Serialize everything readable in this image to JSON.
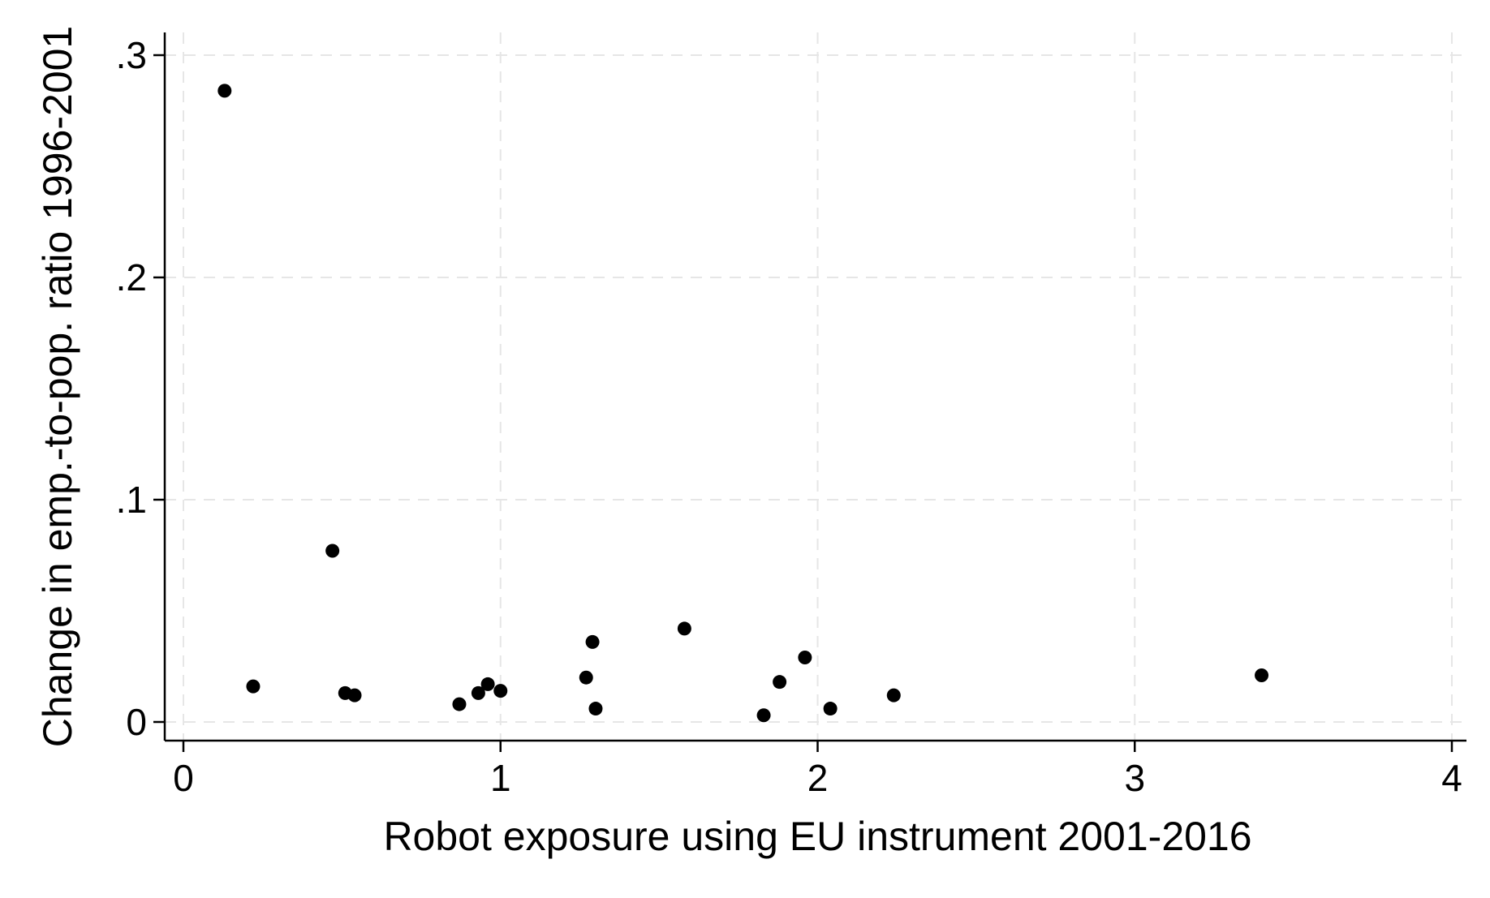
{
  "chart_data": {
    "type": "scatter",
    "xlabel": "Robot exposure using EU instrument 2001-2016",
    "ylabel": "Change in emp.-to-pop. ratio 1996-2001",
    "xlim": [
      0,
      4
    ],
    "ylim": [
      0,
      0.3
    ],
    "xticks": [
      0,
      1,
      2,
      3,
      4
    ],
    "xtick_labels": [
      "0",
      "1",
      "2",
      "3",
      "4"
    ],
    "yticks": [
      0,
      0.1,
      0.2,
      0.3
    ],
    "ytick_labels": [
      "0",
      ".1",
      ".2",
      ".3"
    ],
    "grid": true,
    "points": [
      {
        "x": 0.13,
        "y": 0.284
      },
      {
        "x": 0.22,
        "y": 0.016
      },
      {
        "x": 0.47,
        "y": 0.077
      },
      {
        "x": 0.51,
        "y": 0.013
      },
      {
        "x": 0.54,
        "y": 0.012
      },
      {
        "x": 0.87,
        "y": 0.008
      },
      {
        "x": 0.93,
        "y": 0.013
      },
      {
        "x": 0.96,
        "y": 0.017
      },
      {
        "x": 1.0,
        "y": 0.014
      },
      {
        "x": 1.27,
        "y": 0.02
      },
      {
        "x": 1.29,
        "y": 0.036
      },
      {
        "x": 1.3,
        "y": 0.006
      },
      {
        "x": 1.58,
        "y": 0.042
      },
      {
        "x": 1.83,
        "y": 0.003
      },
      {
        "x": 1.88,
        "y": 0.018
      },
      {
        "x": 1.96,
        "y": 0.029
      },
      {
        "x": 2.04,
        "y": 0.006
      },
      {
        "x": 2.24,
        "y": 0.012
      },
      {
        "x": 3.4,
        "y": 0.021
      }
    ],
    "marker_color": "#000000",
    "grid_color": "#e6e6e6"
  }
}
